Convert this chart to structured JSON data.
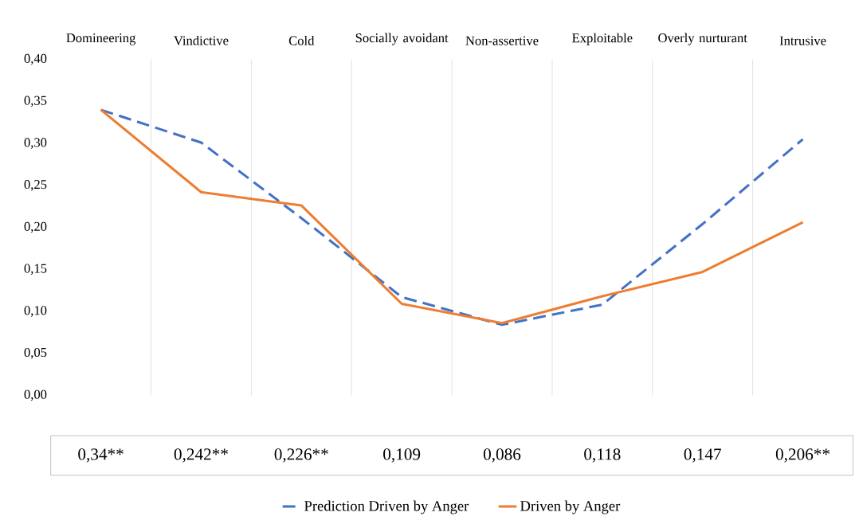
{
  "chart_data": {
    "type": "line",
    "categories": [
      "Domineering",
      "Vindictive",
      "Cold",
      "Socially avoidant",
      "Non-assertive",
      "Exploitable",
      "Overly nurturant",
      "Intrusive"
    ],
    "series": [
      {
        "name": "Prediction Driven by Anger",
        "color": "#4472c4",
        "line_style": "dashed",
        "values": [
          0.34,
          0.301,
          0.211,
          0.117,
          0.084,
          0.108,
          0.204,
          0.305
        ]
      },
      {
        "name": "Driven by Anger",
        "color": "#ed7d31",
        "line_style": "solid",
        "values": [
          0.34,
          0.242,
          0.226,
          0.109,
          0.086,
          0.118,
          0.147,
          0.206
        ],
        "value_labels": [
          "0,34**",
          "0,242**",
          "0,226**",
          "0,109",
          "0,086",
          "0,118",
          "0,147",
          "0,206**"
        ]
      }
    ],
    "ylim": [
      0,
      0.4
    ],
    "yticks": [
      {
        "value": 0,
        "label": "0,00"
      },
      {
        "value": 0.05,
        "label": "0,05"
      },
      {
        "value": 0.1,
        "label": "0,10"
      },
      {
        "value": 0.15,
        "label": "0,15"
      },
      {
        "value": 0.2,
        "label": "0,20"
      },
      {
        "value": 0.25,
        "label": "0,25"
      },
      {
        "value": 0.3,
        "label": "0,30"
      },
      {
        "value": 0.35,
        "label": "0,35"
      },
      {
        "value": 0.4,
        "label": "0,40"
      }
    ],
    "grid": "x",
    "legend": "bottom",
    "marker": "none"
  }
}
